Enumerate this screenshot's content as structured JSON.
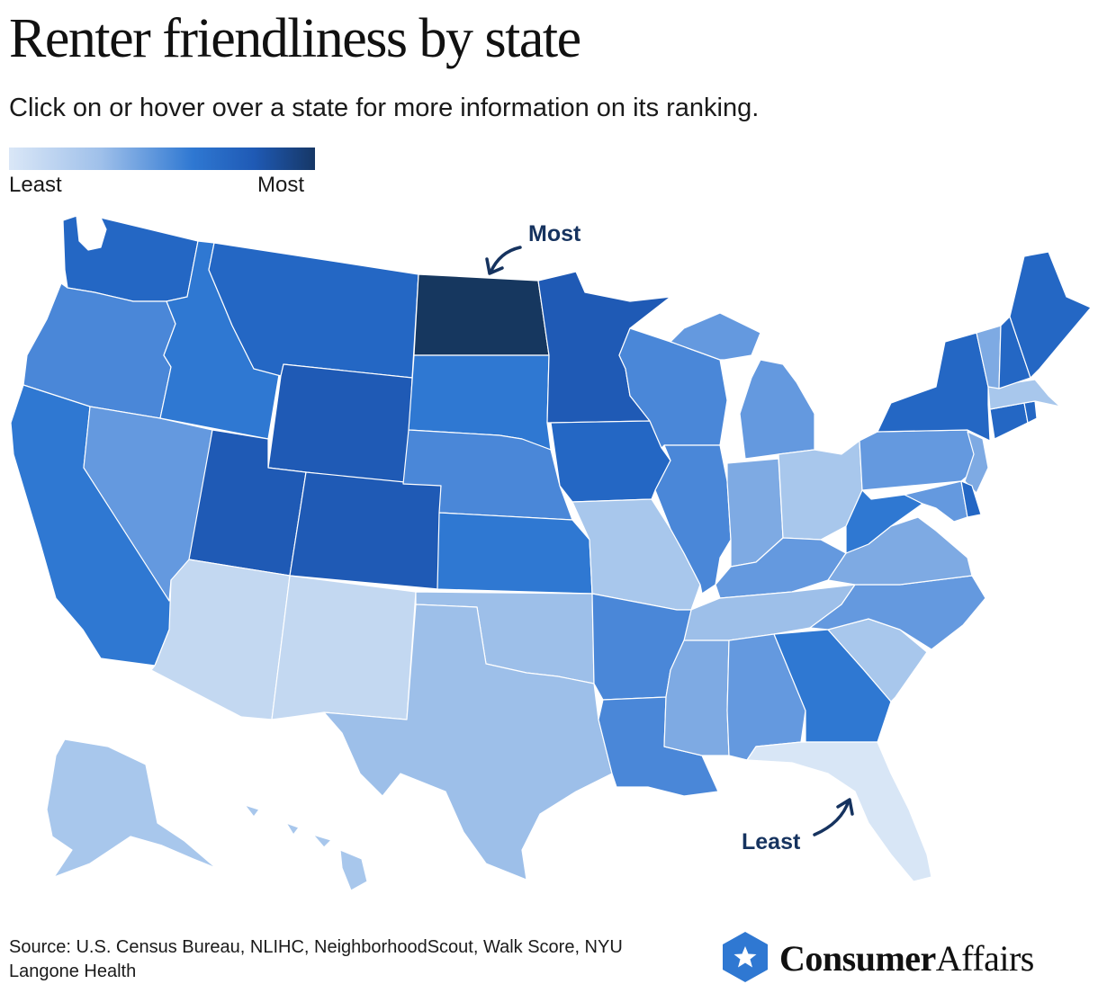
{
  "header": {
    "title": "Renter friendliness by state",
    "subtitle": "Click on or hover over a state for more information on its ranking."
  },
  "legend": {
    "least_label": "Least",
    "most_label": "Most",
    "colors": [
      "#dae7f7",
      "#9fc0ea",
      "#2f78d2",
      "#1f5ab5",
      "#163766"
    ]
  },
  "annotations": {
    "most": "Most",
    "least": "Least"
  },
  "palette": {
    "c1": "#d8e6f6",
    "c2": "#c3d8f1",
    "c3": "#a8c7ec",
    "c4": "#9dbfe9",
    "c5": "#7eaae3",
    "c6": "#6499df",
    "c7": "#4a87d8",
    "c8": "#2f78d2",
    "c9": "#2467c4",
    "c10": "#1f5ab5",
    "c11": "#16375f"
  },
  "footer": {
    "source": "Source: U.S. Census Bureau, NLIHC, NeighborhoodScout, Walk Score, NYU Langone Health",
    "brand_bold": "Consumer",
    "brand_regular": "Affairs",
    "brand_icon": "star-hexagon-icon",
    "brand_color": "#2f78d2"
  }
}
